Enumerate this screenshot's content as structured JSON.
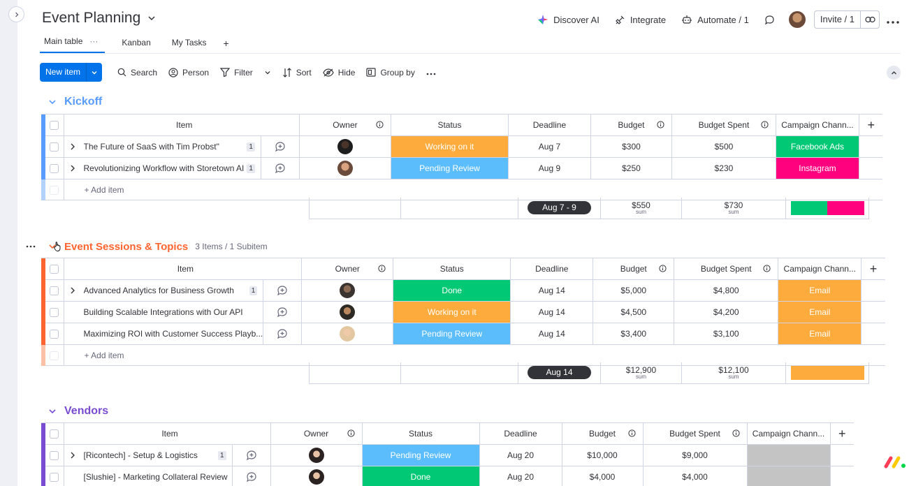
{
  "board": {
    "title": "Event Planning"
  },
  "header": {
    "discover_ai": "Discover AI",
    "integrate": "Integrate",
    "automate": "Automate / 1",
    "invite": "Invite / 1"
  },
  "tabs": [
    {
      "label": "Main table"
    },
    {
      "label": "Kanban"
    },
    {
      "label": "My Tasks"
    }
  ],
  "toolbar": {
    "new_item": "New item",
    "search": "Search",
    "person": "Person",
    "filter": "Filter",
    "sort": "Sort",
    "hide": "Hide",
    "group_by": "Group by"
  },
  "columns": {
    "item": "Item",
    "owner": "Owner",
    "status": "Status",
    "deadline": "Deadline",
    "budget": "Budget",
    "budget_spent": "Budget Spent",
    "campaign_channel": "Campaign Chann..."
  },
  "add_item_label": "+ Add item",
  "sum_label": "sum",
  "colors": {
    "working": "#fdab3d",
    "pending": "#579bfc",
    "pending_light": "#66ccff",
    "done": "#00c875",
    "facebook": "#00c875",
    "instagram": "#ff007f",
    "email": "#fdab3d",
    "empty": "#c4c4c4",
    "kickoff": "#579bfc",
    "sessions": "#ff642e",
    "vendors": "#784bd1"
  },
  "groups": [
    {
      "title": "Kickoff",
      "count": "",
      "rows": [
        {
          "name": "The Future of SaaS with Tim Probst\"",
          "badge": "1",
          "status": "Working on it",
          "deadline": "Aug 7",
          "budget": "$300",
          "spent": "$500",
          "channel": "Facebook Ads"
        },
        {
          "name": "Revolutionizing Workflow with Storetown AI",
          "badge": "1",
          "status": "Pending Review",
          "deadline": "Aug 9",
          "budget": "$250",
          "spent": "$230",
          "channel": "Instagram"
        }
      ],
      "summary": {
        "deadline": "Aug 7 - 9",
        "budget": "$550",
        "spent": "$730"
      }
    },
    {
      "title": "Event Sessions & Topics",
      "count": "3 Items / 1 Subitem",
      "rows": [
        {
          "name": "Advanced Analytics for Business Growth",
          "badge": "1",
          "status": "Done",
          "deadline": "Aug 14",
          "budget": "$5,000",
          "spent": "$4,800",
          "channel": "Email"
        },
        {
          "name": "Building Scalable Integrations with Our API",
          "badge": "",
          "status": "Working on it",
          "deadline": "Aug 14",
          "budget": "$4,500",
          "spent": "$4,200",
          "channel": "Email"
        },
        {
          "name": "Maximizing ROI with Customer Success Playb...",
          "badge": "",
          "status": "Pending Review",
          "deadline": "Aug 14",
          "budget": "$3,400",
          "spent": "$3,100",
          "channel": "Email"
        }
      ],
      "summary": {
        "deadline": "Aug 14",
        "budget": "$12,900",
        "spent": "$12,100"
      }
    },
    {
      "title": "Vendors",
      "count": "",
      "rows": [
        {
          "name": "[Ricontech] - Setup & Logistics",
          "badge": "1",
          "status": "Pending Review",
          "deadline": "Aug 20",
          "budget": "$10,000",
          "spent": "$9,000",
          "channel": ""
        },
        {
          "name": "[Slushie] - Marketing Collateral Review",
          "badge": "",
          "status": "Done",
          "deadline": "Aug 20",
          "budget": "$4,000",
          "spent": "$4,000",
          "channel": ""
        }
      ]
    }
  ]
}
